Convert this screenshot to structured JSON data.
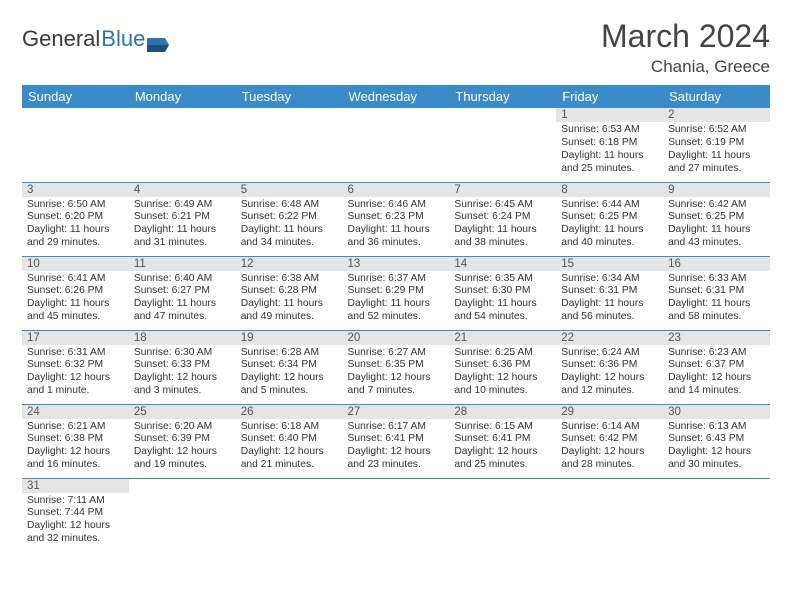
{
  "logo": {
    "word1": "General",
    "word2": "Blue"
  },
  "title": "March 2024",
  "location": "Chania, Greece",
  "colors": {
    "headerBg": "#3b8bc8",
    "headerText": "#ffffff",
    "dayNumBg": "#e5e5e5",
    "rowDivider": "#3b8bc8",
    "bodyText": "#333333",
    "logoGray": "#3a3a3a",
    "logoBlue": "#2e74b5"
  },
  "dayHeaders": [
    "Sunday",
    "Monday",
    "Tuesday",
    "Wednesday",
    "Thursday",
    "Friday",
    "Saturday"
  ],
  "weeks": [
    [
      {
        "num": "",
        "sr": "",
        "ss": "",
        "dl1": "",
        "dl2": ""
      },
      {
        "num": "",
        "sr": "",
        "ss": "",
        "dl1": "",
        "dl2": ""
      },
      {
        "num": "",
        "sr": "",
        "ss": "",
        "dl1": "",
        "dl2": ""
      },
      {
        "num": "",
        "sr": "",
        "ss": "",
        "dl1": "",
        "dl2": ""
      },
      {
        "num": "",
        "sr": "",
        "ss": "",
        "dl1": "",
        "dl2": ""
      },
      {
        "num": "1",
        "sr": "Sunrise: 6:53 AM",
        "ss": "Sunset: 6:18 PM",
        "dl1": "Daylight: 11 hours",
        "dl2": "and 25 minutes."
      },
      {
        "num": "2",
        "sr": "Sunrise: 6:52 AM",
        "ss": "Sunset: 6:19 PM",
        "dl1": "Daylight: 11 hours",
        "dl2": "and 27 minutes."
      }
    ],
    [
      {
        "num": "3",
        "sr": "Sunrise: 6:50 AM",
        "ss": "Sunset: 6:20 PM",
        "dl1": "Daylight: 11 hours",
        "dl2": "and 29 minutes."
      },
      {
        "num": "4",
        "sr": "Sunrise: 6:49 AM",
        "ss": "Sunset: 6:21 PM",
        "dl1": "Daylight: 11 hours",
        "dl2": "and 31 minutes."
      },
      {
        "num": "5",
        "sr": "Sunrise: 6:48 AM",
        "ss": "Sunset: 6:22 PM",
        "dl1": "Daylight: 11 hours",
        "dl2": "and 34 minutes."
      },
      {
        "num": "6",
        "sr": "Sunrise: 6:46 AM",
        "ss": "Sunset: 6:23 PM",
        "dl1": "Daylight: 11 hours",
        "dl2": "and 36 minutes."
      },
      {
        "num": "7",
        "sr": "Sunrise: 6:45 AM",
        "ss": "Sunset: 6:24 PM",
        "dl1": "Daylight: 11 hours",
        "dl2": "and 38 minutes."
      },
      {
        "num": "8",
        "sr": "Sunrise: 6:44 AM",
        "ss": "Sunset: 6:25 PM",
        "dl1": "Daylight: 11 hours",
        "dl2": "and 40 minutes."
      },
      {
        "num": "9",
        "sr": "Sunrise: 6:42 AM",
        "ss": "Sunset: 6:25 PM",
        "dl1": "Daylight: 11 hours",
        "dl2": "and 43 minutes."
      }
    ],
    [
      {
        "num": "10",
        "sr": "Sunrise: 6:41 AM",
        "ss": "Sunset: 6:26 PM",
        "dl1": "Daylight: 11 hours",
        "dl2": "and 45 minutes."
      },
      {
        "num": "11",
        "sr": "Sunrise: 6:40 AM",
        "ss": "Sunset: 6:27 PM",
        "dl1": "Daylight: 11 hours",
        "dl2": "and 47 minutes."
      },
      {
        "num": "12",
        "sr": "Sunrise: 6:38 AM",
        "ss": "Sunset: 6:28 PM",
        "dl1": "Daylight: 11 hours",
        "dl2": "and 49 minutes."
      },
      {
        "num": "13",
        "sr": "Sunrise: 6:37 AM",
        "ss": "Sunset: 6:29 PM",
        "dl1": "Daylight: 11 hours",
        "dl2": "and 52 minutes."
      },
      {
        "num": "14",
        "sr": "Sunrise: 6:35 AM",
        "ss": "Sunset: 6:30 PM",
        "dl1": "Daylight: 11 hours",
        "dl2": "and 54 minutes."
      },
      {
        "num": "15",
        "sr": "Sunrise: 6:34 AM",
        "ss": "Sunset: 6:31 PM",
        "dl1": "Daylight: 11 hours",
        "dl2": "and 56 minutes."
      },
      {
        "num": "16",
        "sr": "Sunrise: 6:33 AM",
        "ss": "Sunset: 6:31 PM",
        "dl1": "Daylight: 11 hours",
        "dl2": "and 58 minutes."
      }
    ],
    [
      {
        "num": "17",
        "sr": "Sunrise: 6:31 AM",
        "ss": "Sunset: 6:32 PM",
        "dl1": "Daylight: 12 hours",
        "dl2": "and 1 minute."
      },
      {
        "num": "18",
        "sr": "Sunrise: 6:30 AM",
        "ss": "Sunset: 6:33 PM",
        "dl1": "Daylight: 12 hours",
        "dl2": "and 3 minutes."
      },
      {
        "num": "19",
        "sr": "Sunrise: 6:28 AM",
        "ss": "Sunset: 6:34 PM",
        "dl1": "Daylight: 12 hours",
        "dl2": "and 5 minutes."
      },
      {
        "num": "20",
        "sr": "Sunrise: 6:27 AM",
        "ss": "Sunset: 6:35 PM",
        "dl1": "Daylight: 12 hours",
        "dl2": "and 7 minutes."
      },
      {
        "num": "21",
        "sr": "Sunrise: 6:25 AM",
        "ss": "Sunset: 6:36 PM",
        "dl1": "Daylight: 12 hours",
        "dl2": "and 10 minutes."
      },
      {
        "num": "22",
        "sr": "Sunrise: 6:24 AM",
        "ss": "Sunset: 6:36 PM",
        "dl1": "Daylight: 12 hours",
        "dl2": "and 12 minutes."
      },
      {
        "num": "23",
        "sr": "Sunrise: 6:23 AM",
        "ss": "Sunset: 6:37 PM",
        "dl1": "Daylight: 12 hours",
        "dl2": "and 14 minutes."
      }
    ],
    [
      {
        "num": "24",
        "sr": "Sunrise: 6:21 AM",
        "ss": "Sunset: 6:38 PM",
        "dl1": "Daylight: 12 hours",
        "dl2": "and 16 minutes."
      },
      {
        "num": "25",
        "sr": "Sunrise: 6:20 AM",
        "ss": "Sunset: 6:39 PM",
        "dl1": "Daylight: 12 hours",
        "dl2": "and 19 minutes."
      },
      {
        "num": "26",
        "sr": "Sunrise: 6:18 AM",
        "ss": "Sunset: 6:40 PM",
        "dl1": "Daylight: 12 hours",
        "dl2": "and 21 minutes."
      },
      {
        "num": "27",
        "sr": "Sunrise: 6:17 AM",
        "ss": "Sunset: 6:41 PM",
        "dl1": "Daylight: 12 hours",
        "dl2": "and 23 minutes."
      },
      {
        "num": "28",
        "sr": "Sunrise: 6:15 AM",
        "ss": "Sunset: 6:41 PM",
        "dl1": "Daylight: 12 hours",
        "dl2": "and 25 minutes."
      },
      {
        "num": "29",
        "sr": "Sunrise: 6:14 AM",
        "ss": "Sunset: 6:42 PM",
        "dl1": "Daylight: 12 hours",
        "dl2": "and 28 minutes."
      },
      {
        "num": "30",
        "sr": "Sunrise: 6:13 AM",
        "ss": "Sunset: 6:43 PM",
        "dl1": "Daylight: 12 hours",
        "dl2": "and 30 minutes."
      }
    ],
    [
      {
        "num": "31",
        "sr": "Sunrise: 7:11 AM",
        "ss": "Sunset: 7:44 PM",
        "dl1": "Daylight: 12 hours",
        "dl2": "and 32 minutes."
      },
      {
        "num": "",
        "sr": "",
        "ss": "",
        "dl1": "",
        "dl2": ""
      },
      {
        "num": "",
        "sr": "",
        "ss": "",
        "dl1": "",
        "dl2": ""
      },
      {
        "num": "",
        "sr": "",
        "ss": "",
        "dl1": "",
        "dl2": ""
      },
      {
        "num": "",
        "sr": "",
        "ss": "",
        "dl1": "",
        "dl2": ""
      },
      {
        "num": "",
        "sr": "",
        "ss": "",
        "dl1": "",
        "dl2": ""
      },
      {
        "num": "",
        "sr": "",
        "ss": "",
        "dl1": "",
        "dl2": ""
      }
    ]
  ]
}
